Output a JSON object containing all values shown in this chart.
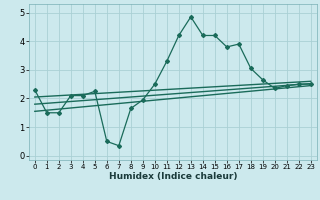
{
  "xlabel": "Humidex (Indice chaleur)",
  "bg_color": "#cce9ed",
  "grid_color": "#aad0d5",
  "line_color": "#1a6b5a",
  "xlim": [
    -0.5,
    23.5
  ],
  "ylim": [
    -0.15,
    5.3
  ],
  "xticks": [
    0,
    1,
    2,
    3,
    4,
    5,
    6,
    7,
    8,
    9,
    10,
    11,
    12,
    13,
    14,
    15,
    16,
    17,
    18,
    19,
    20,
    21,
    22,
    23
  ],
  "yticks": [
    0,
    1,
    2,
    3,
    4,
    5
  ],
  "curve_x": [
    0,
    1,
    2,
    3,
    4,
    5,
    6,
    7,
    8,
    9,
    10,
    11,
    12,
    13,
    14,
    15,
    16,
    17,
    18,
    19,
    20,
    21,
    22,
    23
  ],
  "curve_y": [
    2.3,
    1.5,
    1.5,
    2.1,
    2.1,
    2.25,
    0.5,
    0.35,
    1.65,
    1.95,
    2.5,
    3.3,
    4.2,
    4.85,
    4.2,
    4.2,
    3.8,
    3.9,
    3.05,
    2.65,
    2.35,
    2.45,
    2.5,
    2.5
  ],
  "line1_x": [
    0,
    23
  ],
  "line1_y": [
    1.55,
    2.45
  ],
  "line2_x": [
    0,
    23
  ],
  "line2_y": [
    1.8,
    2.52
  ],
  "line3_x": [
    0,
    23
  ],
  "line3_y": [
    2.05,
    2.6
  ]
}
